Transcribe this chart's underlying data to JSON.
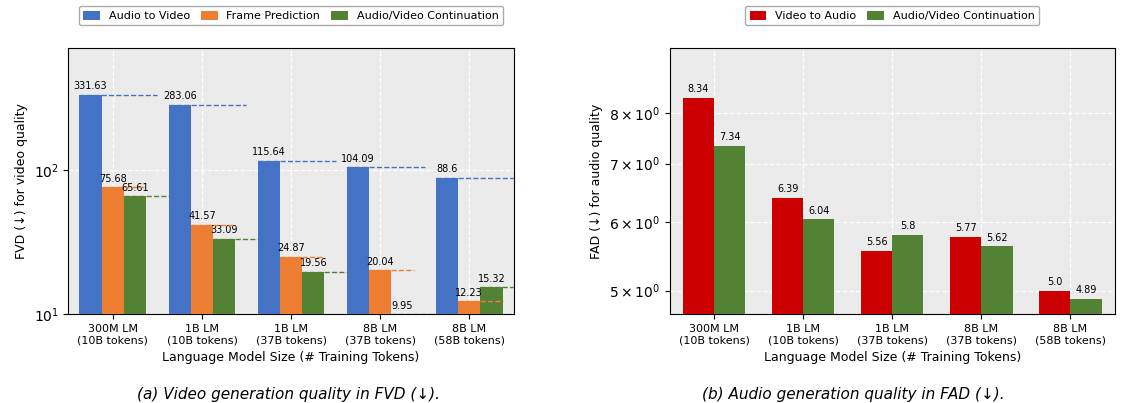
{
  "categories": [
    "300M LM\n(10B tokens)",
    "1B LM\n(10B tokens)",
    "1B LM\n(37B tokens)",
    "8B LM\n(37B tokens)",
    "8B LM\n(58B tokens)"
  ],
  "fvd": {
    "audio_to_video": [
      331.63,
      283.06,
      115.64,
      104.09,
      88.6
    ],
    "frame_prediction": [
      75.68,
      41.57,
      24.87,
      20.04,
      12.23
    ],
    "av_continuation": [
      65.61,
      33.09,
      19.56,
      9.95,
      15.32
    ],
    "colors": [
      "#4472C4",
      "#ED7D31",
      "#548235"
    ],
    "legend": [
      "Audio to Video",
      "Frame Prediction",
      "Audio/Video Continuation"
    ],
    "ylabel": "FVD (↓) for video quality",
    "xlabel": "Language Model Size (# Training Tokens)",
    "ylim": [
      10,
      700
    ],
    "caption": "(a) Video generation quality in FVD (↓)."
  },
  "fad": {
    "video_to_audio": [
      8.34,
      6.39,
      5.56,
      5.77,
      5.0
    ],
    "av_continuation": [
      7.34,
      6.04,
      5.8,
      5.62,
      4.89
    ],
    "colors": [
      "#CC0000",
      "#548235"
    ],
    "legend": [
      "Video to Audio",
      "Audio/Video Continuation"
    ],
    "ylabel": "FAD (↓) for audio quality",
    "xlabel": "Language Model Size (# Training Tokens)",
    "ylim": [
      4.7,
      9.5
    ],
    "yticks": [
      5,
      6,
      7,
      8
    ],
    "caption": "(b) Audio generation quality in FAD (↓)."
  },
  "background_color": "#FFFFFF",
  "plot_bg_color": "#EBEBEB",
  "label_fontsize": 7,
  "axis_fontsize": 9,
  "tick_fontsize": 8,
  "legend_fontsize": 8
}
